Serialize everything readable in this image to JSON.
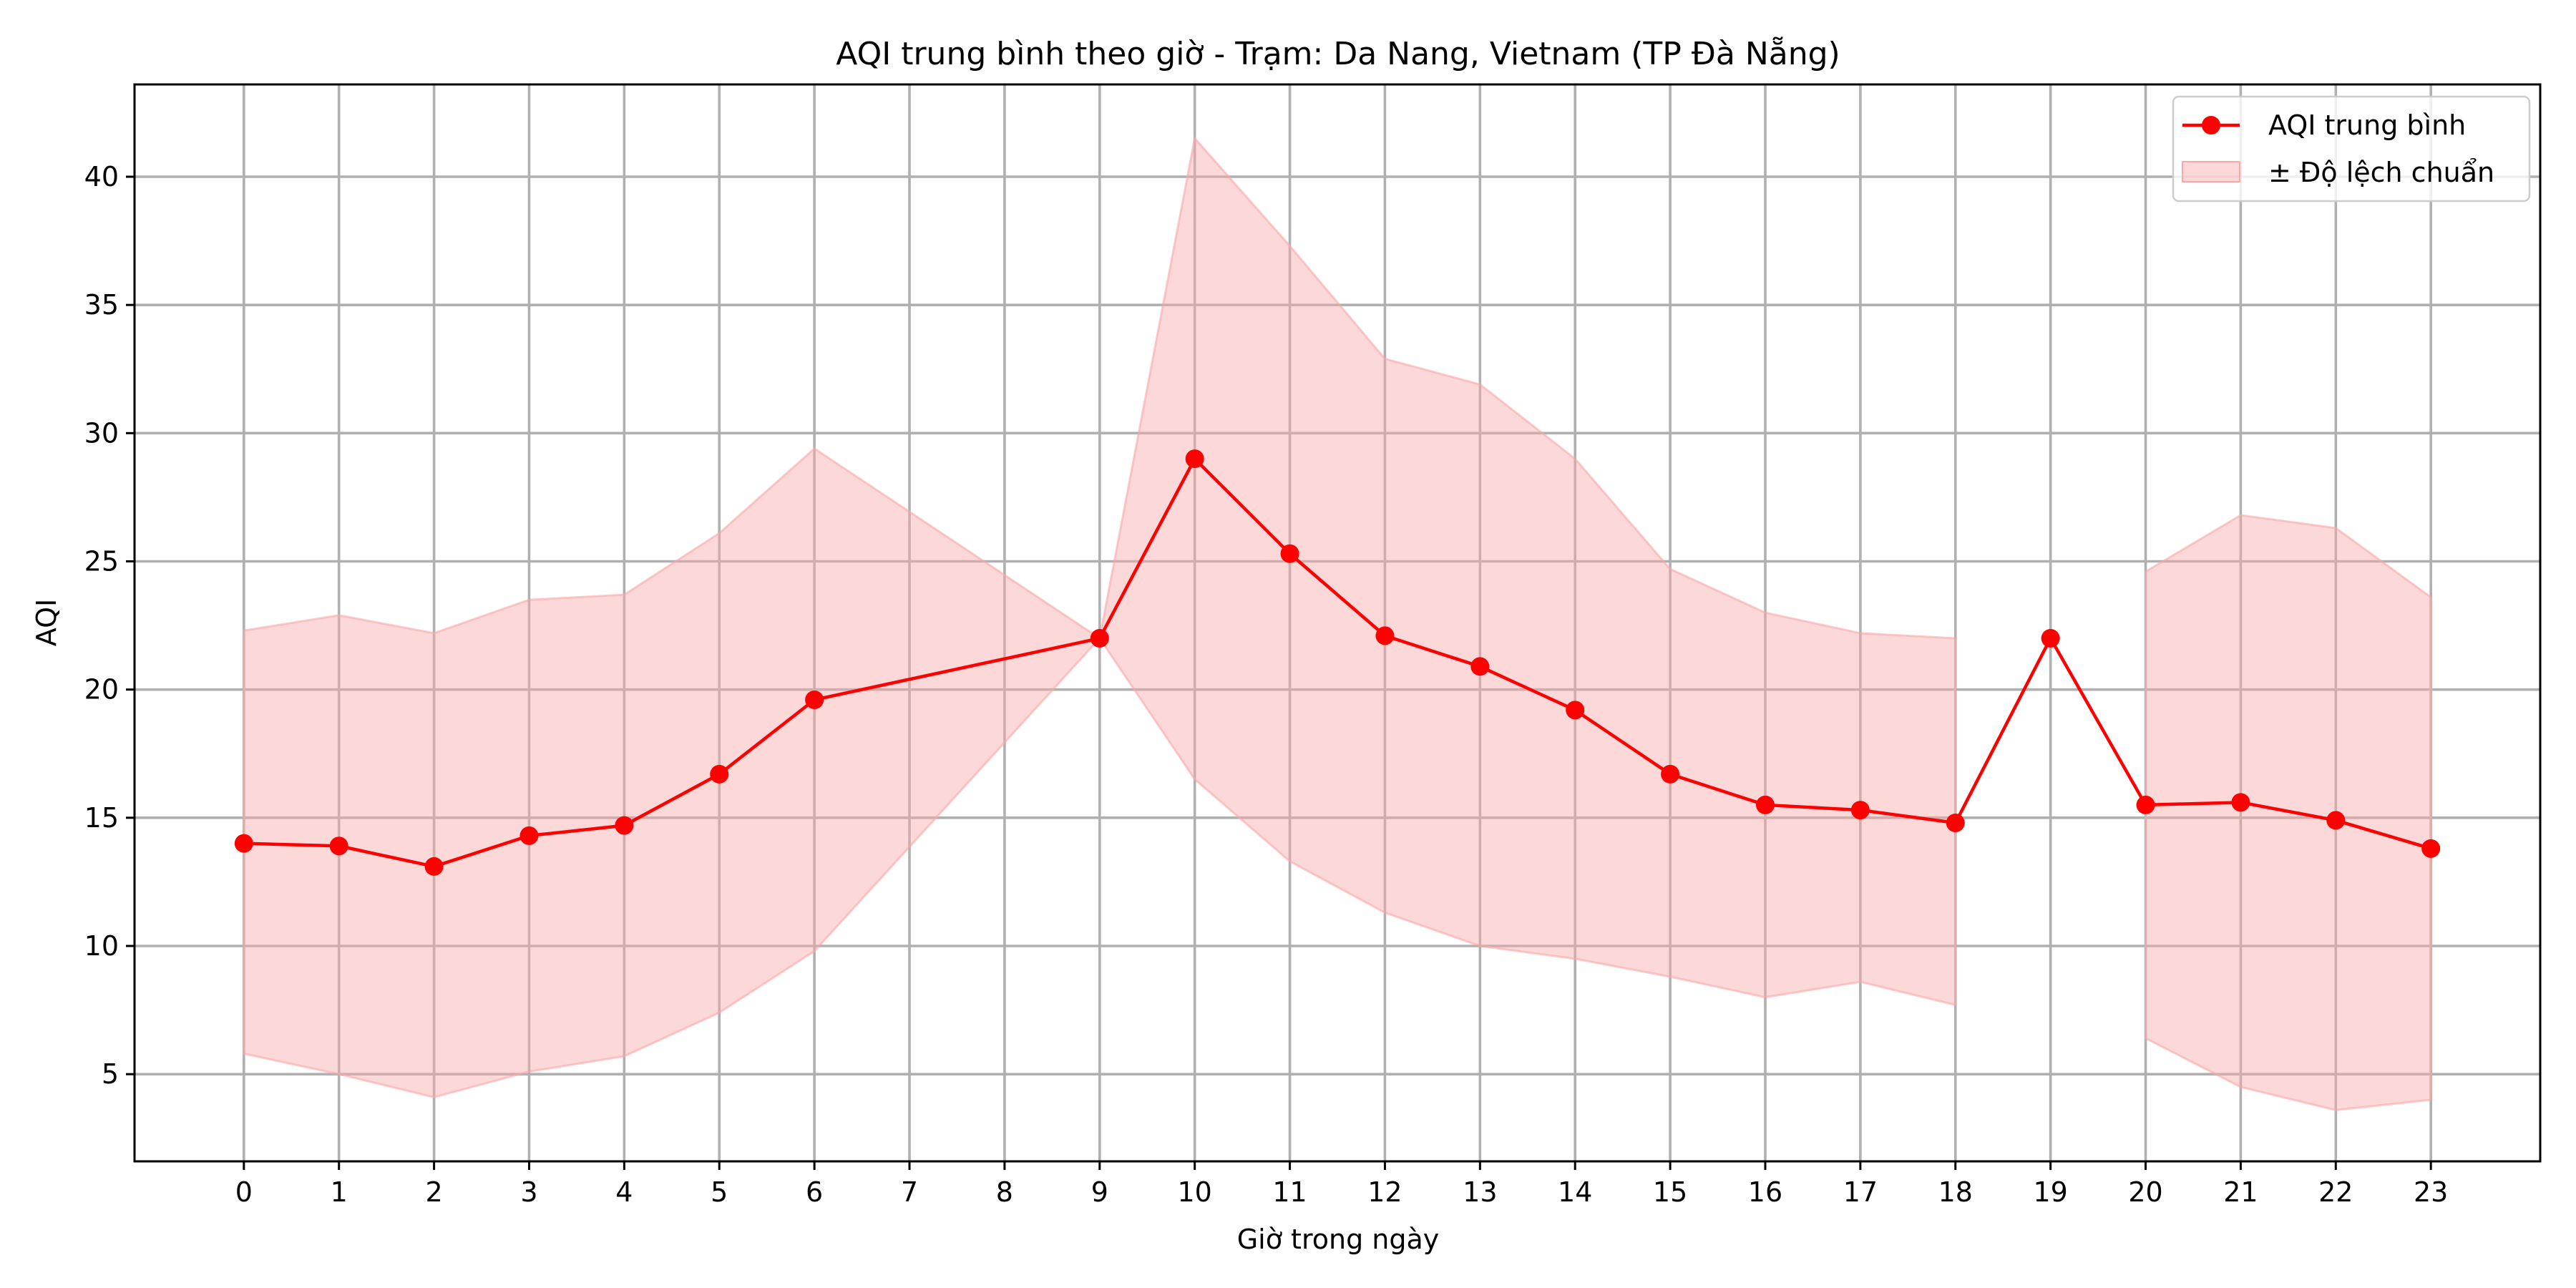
{
  "chart_data": {
    "type": "line",
    "title": "AQI trung bình theo giờ - Trạm: Da Nang, Vietnam (TP Đà Nẵng)",
    "xlabel": "Giờ trong ngày",
    "ylabel": "AQI",
    "xlim": [
      -1.15,
      24.15
    ],
    "ylim": [
      1.6,
      43.6
    ],
    "grid": true,
    "legend_position": "top-right",
    "x_ticks": [
      0,
      1,
      2,
      3,
      4,
      5,
      6,
      7,
      8,
      9,
      10,
      11,
      12,
      13,
      14,
      15,
      16,
      17,
      18,
      19,
      20,
      21,
      22,
      23
    ],
    "y_ticks": [
      5,
      10,
      15,
      20,
      25,
      30,
      35,
      40
    ],
    "series": [
      {
        "name": "AQI trung bình",
        "color": "#ff0000",
        "marker": "circle",
        "x": [
          0,
          1,
          2,
          3,
          4,
          5,
          6,
          9,
          10,
          11,
          12,
          13,
          14,
          15,
          16,
          17,
          18,
          19,
          20,
          21,
          22,
          23
        ],
        "y": [
          14.0,
          13.9,
          13.1,
          14.3,
          14.7,
          16.7,
          19.6,
          22.0,
          29.0,
          25.3,
          22.1,
          20.9,
          19.2,
          16.7,
          15.5,
          15.3,
          14.8,
          22.0,
          15.5,
          15.6,
          14.9,
          13.8
        ]
      }
    ],
    "band": {
      "name": "± Độ lệch chuẩn",
      "color": "#f8a8a8",
      "segments": [
        {
          "x": [
            0,
            1,
            2,
            3,
            4,
            5,
            6,
            9,
            10,
            11,
            12,
            13,
            14,
            15,
            16,
            17,
            18
          ],
          "upper": [
            22.3,
            22.9,
            22.2,
            23.5,
            23.7,
            26.1,
            29.4,
            22.0,
            41.5,
            37.3,
            32.9,
            31.9,
            29.0,
            24.7,
            23.0,
            22.2,
            22.0
          ],
          "lower": [
            5.8,
            5.0,
            4.1,
            5.1,
            5.7,
            7.4,
            9.8,
            22.0,
            16.5,
            13.3,
            11.3,
            10.0,
            9.5,
            8.8,
            8.0,
            8.6,
            7.7
          ]
        },
        {
          "x": [
            20,
            21,
            22,
            23
          ],
          "upper": [
            24.6,
            26.8,
            26.3,
            23.6
          ],
          "lower": [
            6.4,
            4.5,
            3.6,
            4.0
          ]
        }
      ]
    }
  }
}
